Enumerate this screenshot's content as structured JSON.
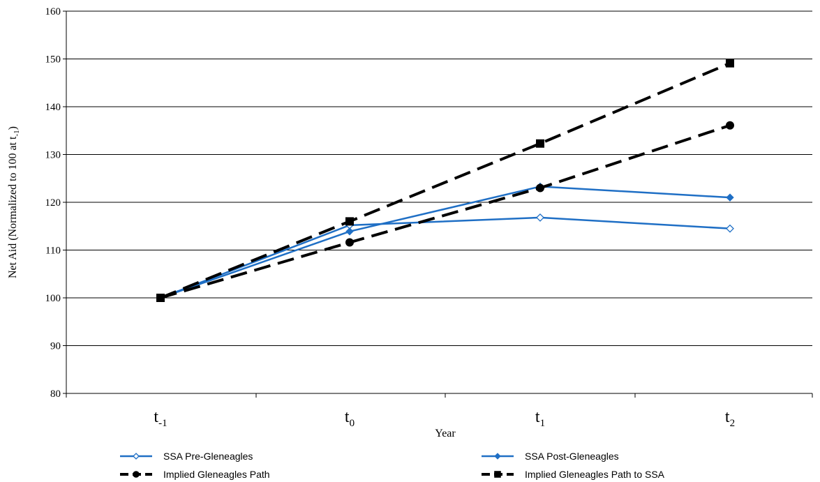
{
  "chart_data": {
    "type": "line",
    "title": "",
    "xlabel": "Year",
    "ylabel": {
      "main": "Net Aid (Normalized to 100 at t",
      "sub": "-1",
      "end": ")"
    },
    "categories": [
      {
        "base": "t",
        "sub": "-1"
      },
      {
        "base": "t",
        "sub": "0"
      },
      {
        "base": "t",
        "sub": "1"
      },
      {
        "base": "t",
        "sub": "2"
      }
    ],
    "ylim": [
      80,
      160
    ],
    "yticks": [
      80,
      90,
      100,
      110,
      120,
      130,
      140,
      150,
      160
    ],
    "grid": true,
    "legend_position": "bottom",
    "series": [
      {
        "name": "SSA Pre-Gleneagles",
        "values": [
          100,
          115.2,
          116.8,
          114.5
        ],
        "color": "#1f6fc5",
        "marker": "diamond-open",
        "dash": false
      },
      {
        "name": "SSA Post-Gleneagles",
        "values": [
          100,
          113.9,
          123.3,
          121.0
        ],
        "color": "#1f6fc5",
        "marker": "diamond-filled",
        "dash": false
      },
      {
        "name": "Implied Gleneagles Path",
        "values": [
          100,
          111.6,
          123.0,
          136.1
        ],
        "color": "#000000",
        "marker": "circle",
        "dash": true
      },
      {
        "name": "Implied Gleneagles Path to SSA",
        "values": [
          100,
          116.0,
          132.3,
          149.1
        ],
        "color": "#000000",
        "marker": "square",
        "dash": true
      }
    ]
  }
}
